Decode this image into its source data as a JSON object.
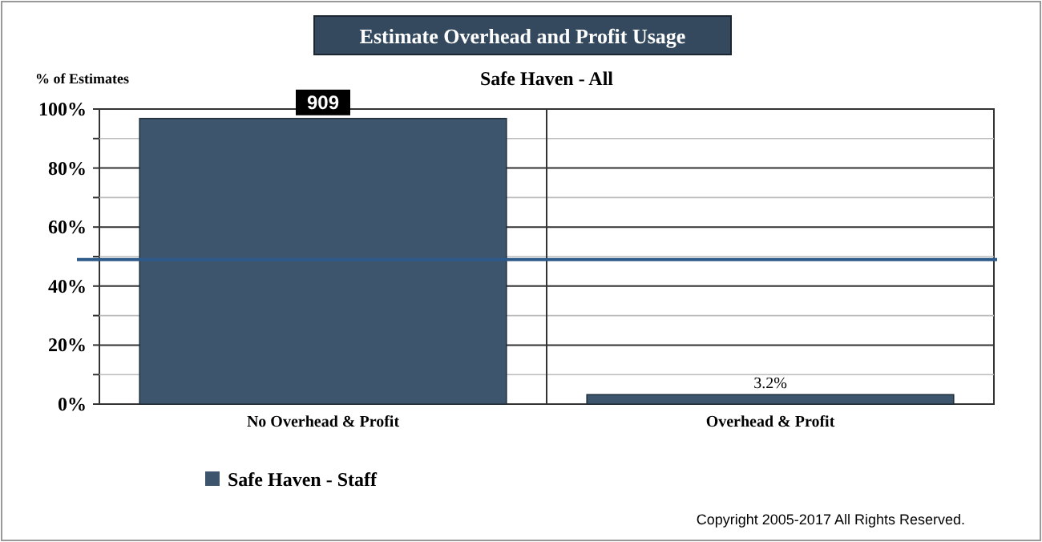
{
  "chart_data": {
    "type": "bar",
    "title": "Estimate Overhead and Profit Usage",
    "subtitle": "Safe Haven - All",
    "ylabel": "% of Estimates",
    "categories": [
      "No Overhead & Profit",
      "Overhead & Profit"
    ],
    "series": [
      {
        "name": "Safe Haven - Staff",
        "color": "#3d566e",
        "values": [
          96.8,
          3.2
        ],
        "value_labels": [
          null,
          "3.2%"
        ]
      }
    ],
    "ylim": [
      0,
      100
    ],
    "yticks": [
      {
        "value": 0,
        "label": "0%"
      },
      {
        "value": 10,
        "label": null
      },
      {
        "value": 20,
        "label": "20%"
      },
      {
        "value": 30,
        "label": null
      },
      {
        "value": 40,
        "label": "40%"
      },
      {
        "value": 50,
        "label": null
      },
      {
        "value": 60,
        "label": "60%"
      },
      {
        "value": 70,
        "label": null
      },
      {
        "value": 80,
        "label": "80%"
      },
      {
        "value": 90,
        "label": null
      },
      {
        "value": 100,
        "label": "100%"
      }
    ],
    "grid": "y",
    "legend": "bottom left",
    "ref_lines": [
      {
        "axis": "y",
        "value": 49,
        "label": null,
        "color": "#2e5a8a"
      }
    ],
    "annotations": [
      {
        "text": "909",
        "x": "No Overhead & Profit",
        "y": 96.8
      },
      "Copyright 2005-2017 All Rights Reserved."
    ]
  }
}
